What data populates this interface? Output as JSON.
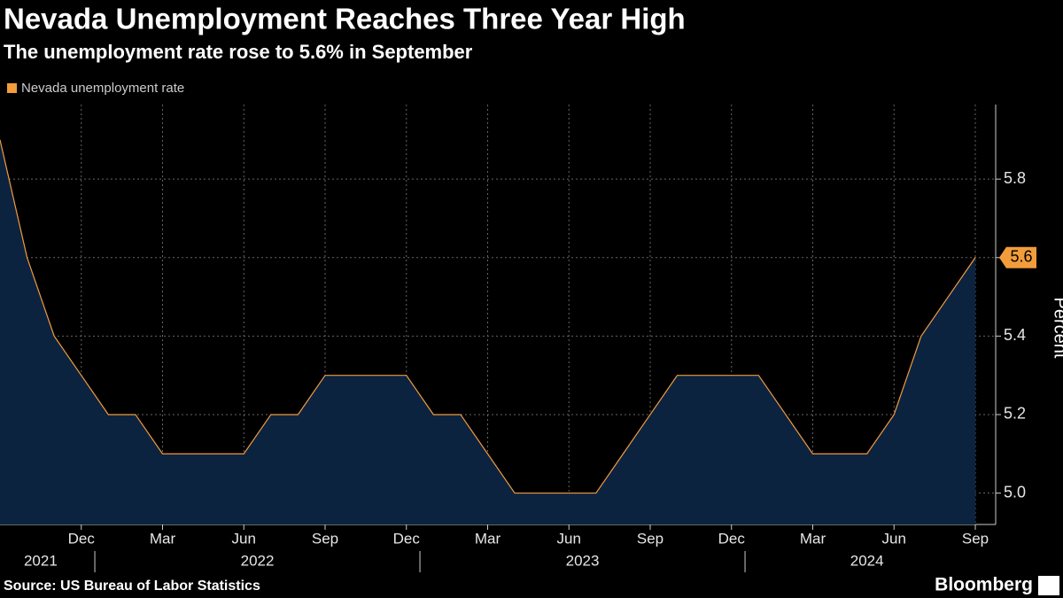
{
  "chart_data": {
    "type": "area",
    "title": "Nevada Unemployment Reaches Three Year High",
    "subtitle": "The unemployment rate rose to 5.6% in September",
    "y_label": "Percent",
    "source": "Source: US Bureau of Labor Statistics",
    "brand": "Bloomberg",
    "x": [
      "2021-09",
      "2021-10",
      "2021-11",
      "2021-12",
      "2022-01",
      "2022-02",
      "2022-03",
      "2022-04",
      "2022-05",
      "2022-06",
      "2022-07",
      "2022-08",
      "2022-09",
      "2022-10",
      "2022-11",
      "2022-12",
      "2023-01",
      "2023-02",
      "2023-03",
      "2023-04",
      "2023-05",
      "2023-06",
      "2023-07",
      "2023-08",
      "2023-09",
      "2023-10",
      "2023-11",
      "2023-12",
      "2024-01",
      "2024-02",
      "2024-03",
      "2024-04",
      "2024-05",
      "2024-06",
      "2024-07",
      "2024-08",
      "2024-09"
    ],
    "series": [
      {
        "name": "Nevada unemployment rate",
        "color": "#f39c3c",
        "fill": "#0c2340",
        "values": [
          5.9,
          5.6,
          5.4,
          5.3,
          5.2,
          5.2,
          5.1,
          5.1,
          5.1,
          5.1,
          5.2,
          5.2,
          5.3,
          5.3,
          5.3,
          5.3,
          5.2,
          5.2,
          5.1,
          5.0,
          5.0,
          5.0,
          5.0,
          5.1,
          5.2,
          5.3,
          5.3,
          5.3,
          5.3,
          5.2,
          5.1,
          5.1,
          5.1,
          5.2,
          5.4,
          5.5,
          5.6
        ]
      }
    ],
    "xticks": [
      {
        "value": "2021-12",
        "label": "Dec"
      },
      {
        "value": "2022-03",
        "label": "Mar"
      },
      {
        "value": "2022-06",
        "label": "Jun"
      },
      {
        "value": "2022-09",
        "label": "Sep"
      },
      {
        "value": "2022-12",
        "label": "Dec"
      },
      {
        "value": "2023-03",
        "label": "Mar"
      },
      {
        "value": "2023-06",
        "label": "Jun"
      },
      {
        "value": "2023-09",
        "label": "Sep"
      },
      {
        "value": "2023-12",
        "label": "Dec"
      },
      {
        "value": "2024-03",
        "label": "Mar"
      },
      {
        "value": "2024-06",
        "label": "Jun"
      },
      {
        "value": "2024-09",
        "label": "Sep"
      }
    ],
    "x_years": [
      "2021",
      "2022",
      "2023",
      "2024"
    ],
    "ylim": [
      4.92,
      5.99
    ],
    "yticks": [
      {
        "value": 5,
        "label": "5.0"
      },
      5.2,
      5.4,
      5.6,
      5.8
    ],
    "grid": true,
    "y_axis_side": "right"
  }
}
